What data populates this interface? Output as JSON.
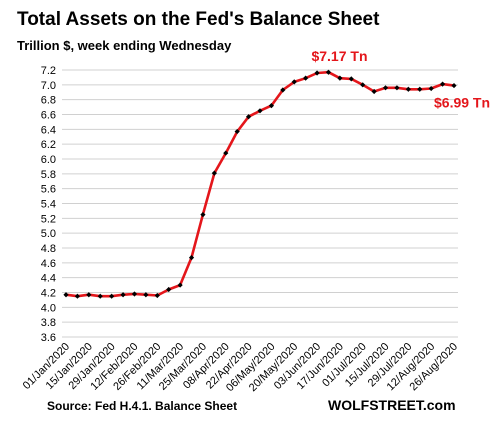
{
  "chart_data": {
    "type": "line",
    "title": "Total Assets on the Fed's Balance Sheet",
    "subtitle": "Trillion $, week ending Wednesday",
    "xlabel": "",
    "ylabel": "",
    "ylim": [
      3.6,
      7.2
    ],
    "y_ticks": [
      "3.6",
      "3.8",
      "4.0",
      "4.2",
      "4.4",
      "4.6",
      "4.8",
      "5.0",
      "5.2",
      "5.4",
      "5.6",
      "5.8",
      "6.0",
      "6.2",
      "6.4",
      "6.6",
      "6.8",
      "7.0",
      "7.2"
    ],
    "x_tick_labels": [
      "01/Jan/2020",
      "15/Jan/2020",
      "29/Jan/2020",
      "12/Feb/2020",
      "26/Feb/2020",
      "11/Mar/2020",
      "25/Mar/2020",
      "08/Apr/2020",
      "22/Apr/2020",
      "06/May/2020",
      "20/May/2020",
      "03/Jun/2020",
      "17/Jun/2020",
      "01/Jul/2020",
      "15/Jul/2020",
      "29/Jul/2020",
      "12/Aug/2020",
      "26/Aug/2020"
    ],
    "grid": true,
    "series": [
      {
        "color": "#e4161b",
        "x": [
          "01/Jan/2020",
          "08/Jan/2020",
          "15/Jan/2020",
          "22/Jan/2020",
          "29/Jan/2020",
          "05/Feb/2020",
          "12/Feb/2020",
          "19/Feb/2020",
          "26/Feb/2020",
          "04/Mar/2020",
          "11/Mar/2020",
          "18/Mar/2020",
          "25/Mar/2020",
          "01/Apr/2020",
          "08/Apr/2020",
          "15/Apr/2020",
          "22/Apr/2020",
          "29/Apr/2020",
          "06/May/2020",
          "13/May/2020",
          "20/May/2020",
          "27/May/2020",
          "03/Jun/2020",
          "10/Jun/2020",
          "17/Jun/2020",
          "24/Jun/2020",
          "01/Jul/2020",
          "08/Jul/2020",
          "15/Jul/2020",
          "22/Jul/2020",
          "29/Jul/2020",
          "05/Aug/2020",
          "12/Aug/2020",
          "19/Aug/2020",
          "26/Aug/2020"
        ],
        "values": [
          4.17,
          4.15,
          4.17,
          4.15,
          4.15,
          4.17,
          4.18,
          4.17,
          4.16,
          4.24,
          4.3,
          4.67,
          5.25,
          5.81,
          6.08,
          6.37,
          6.57,
          6.65,
          6.72,
          6.93,
          7.04,
          7.09,
          7.16,
          7.17,
          7.09,
          7.08,
          7.0,
          6.91,
          6.96,
          6.96,
          6.94,
          6.94,
          6.95,
          7.01,
          6.99
        ]
      }
    ],
    "annotations": [
      {
        "text": "$7.17 Tn",
        "x": "10/Jun/2020",
        "y": 7.17
      },
      {
        "text": "$6.99 Tn",
        "x": "26/Aug/2020",
        "y": 6.99
      }
    ],
    "source": "Source: Fed H.4.1. Balance Sheet",
    "brand": "WOLFSTREET.com"
  }
}
